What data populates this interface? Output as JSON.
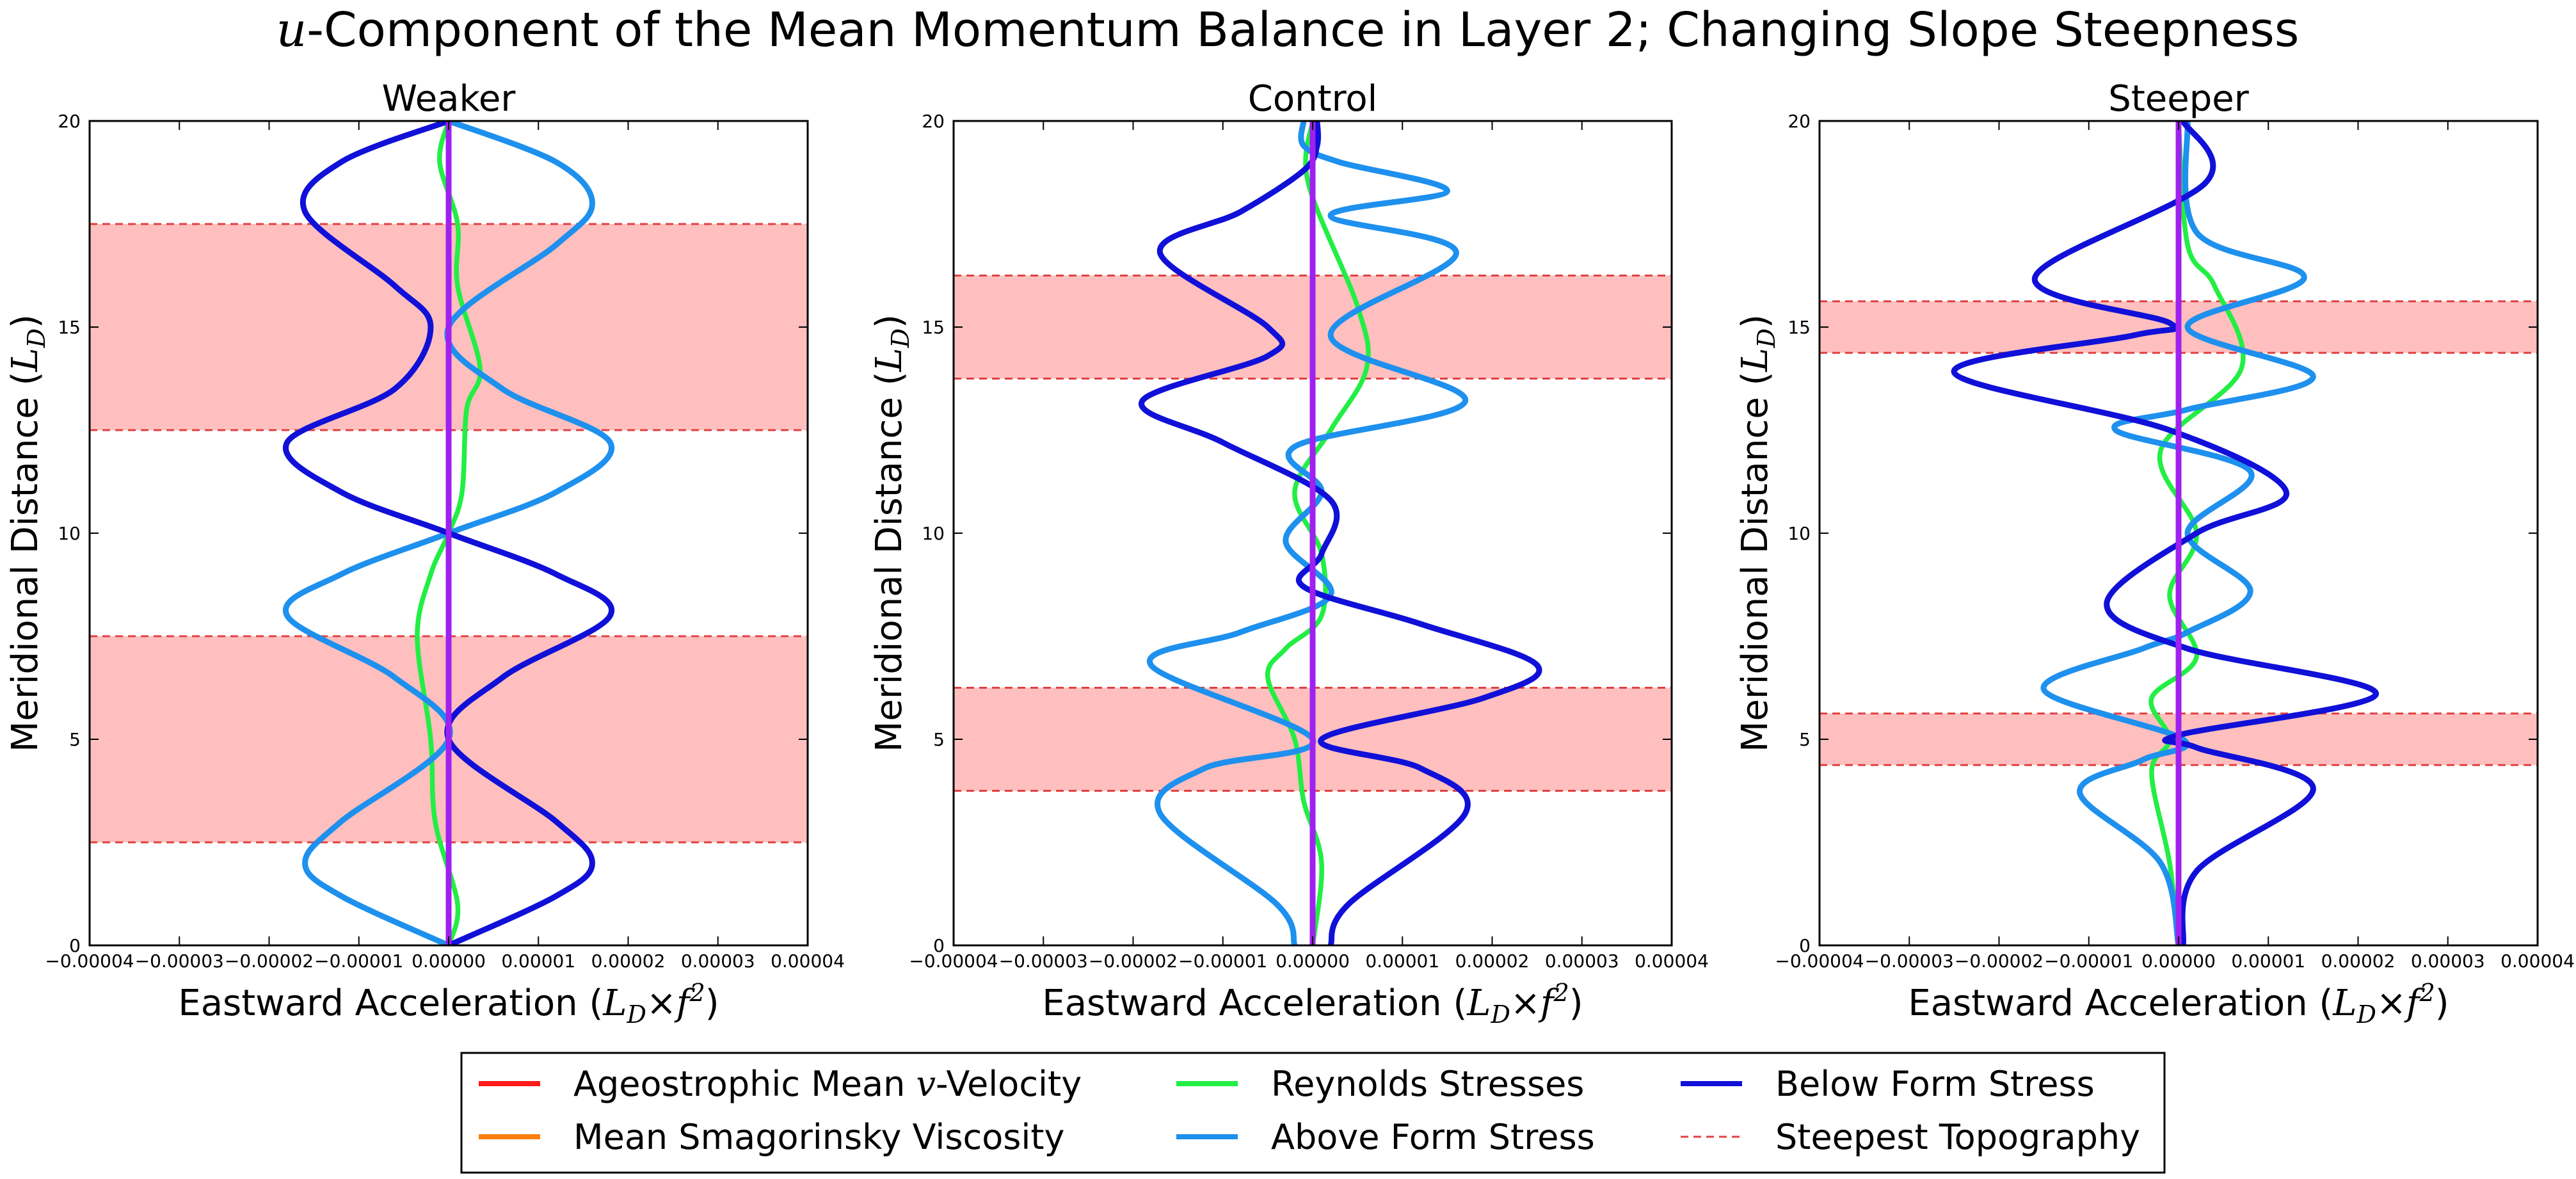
{
  "figure": {
    "title_pre": "u",
    "title_rest": "-Component of the Mean Momentum Balance in Layer 2; Changing Slope Steepness"
  },
  "axes": {
    "xlabel_text": "Eastward Acceleration (",
    "xlabel_math": "L",
    "xlabel_sub": "D",
    "xlabel_times": "×",
    "xlabel_f": "f",
    "xlabel_sup": "2",
    "xlabel_close": ")",
    "ylabel_text": "Meridional Distance (",
    "ylabel_math": "L",
    "ylabel_sub": "D",
    "ylabel_close": ")",
    "xticks": [
      "−0.00004",
      "−0.00003",
      "−0.00002",
      "−0.00001",
      "0.00000",
      "0.00001",
      "0.00002",
      "0.00003",
      "0.00004"
    ],
    "yticks": [
      "0",
      "5",
      "10",
      "15",
      "20"
    ]
  },
  "colors": {
    "ageo": "#ff1a1a",
    "smag": "#ff7f0e",
    "reynolds": "#22ee44",
    "above": "#1e90ee",
    "below": "#1010d8",
    "topo_band": "#ffbfbf",
    "topo_line": "#e04040",
    "sum": "#a020f0"
  },
  "legend": {
    "items": [
      {
        "label": "Ageostrophic Mean ",
        "math": "v",
        "tail": "-Velocity",
        "key": "ageo",
        "style": "solid"
      },
      {
        "label": "Mean Smagorinsky Viscosity",
        "math": "",
        "tail": "",
        "key": "smag",
        "style": "solid"
      },
      {
        "label": "Reynolds Stresses",
        "math": "",
        "tail": "",
        "key": "reynolds",
        "style": "solid"
      },
      {
        "label": "Above Form Stress",
        "math": "",
        "tail": "",
        "key": "above",
        "style": "solid"
      },
      {
        "label": "Below Form Stress",
        "math": "",
        "tail": "",
        "key": "below",
        "style": "solid"
      },
      {
        "label": "Steepest Topography",
        "math": "",
        "tail": "",
        "key": "topo_line",
        "style": "dashed"
      }
    ]
  },
  "chart_data": [
    {
      "type": "line",
      "title": "Weaker",
      "xlim": [
        -4e-05,
        4e-05
      ],
      "ylim": [
        0,
        20
      ],
      "shaded_bands": [
        [
          2.5,
          7.5
        ],
        [
          12.5,
          17.5
        ]
      ],
      "series": [
        {
          "name": "Above Form Stress",
          "x": [
            0,
            -1.2e-05,
            -1.6e-05,
            -1.2e-05,
            0,
            -6e-06,
            -1.8e-05,
            -1.2e-05,
            0,
            1.2e-05,
            1.8e-05,
            6e-06,
            0,
            1.2e-05,
            1.6e-05,
            1.2e-05,
            0
          ],
          "y": [
            0,
            1.2,
            2,
            3,
            5,
            6.5,
            8,
            9,
            10,
            11,
            12.2,
            13.5,
            15,
            17,
            18,
            19,
            20
          ]
        },
        {
          "name": "Below Form Stress",
          "x": [
            0,
            1.2e-05,
            1.6e-05,
            1.2e-05,
            0,
            6e-06,
            1.8e-05,
            1.2e-05,
            0,
            -1.2e-05,
            -1.8e-05,
            -6e-06,
            -2e-06,
            -6e-06,
            -1.6e-05,
            -1.2e-05,
            0
          ],
          "y": [
            0,
            1.2,
            2,
            3,
            5,
            6.5,
            8,
            9,
            10,
            11,
            12.2,
            13.5,
            15,
            16,
            17.8,
            19,
            20
          ]
        },
        {
          "name": "Reynolds Stresses",
          "x": [
            0,
            1e-06,
            -1.5e-06,
            -2e-06,
            -3.5e-06,
            -2e-06,
            0,
            1.5e-06,
            2e-06,
            3.5e-06,
            1e-06,
            1e-06,
            -1e-06,
            0
          ],
          "y": [
            0,
            1,
            3,
            5,
            7.5,
            9,
            10,
            11,
            13,
            14,
            16,
            17.5,
            19,
            20
          ]
        },
        {
          "name": "Ageostrophic Mean v-Velocity",
          "x": [
            0,
            0
          ],
          "y": [
            0,
            20
          ]
        },
        {
          "name": "Mean Smagorinsky Viscosity",
          "x": [
            0,
            0
          ],
          "y": [
            0,
            20
          ]
        },
        {
          "name": "Sum",
          "x": [
            0,
            0
          ],
          "y": [
            0,
            20
          ]
        }
      ]
    },
    {
      "type": "line",
      "title": "Control",
      "xlim": [
        -4e-05,
        4e-05
      ],
      "ylim": [
        0,
        20
      ],
      "shaded_bands": [
        [
          3.75,
          6.25
        ],
        [
          13.75,
          16.25
        ]
      ],
      "series": [
        {
          "name": "Above Form Stress",
          "x": [
            -2e-06,
            -4e-06,
            -1.7e-05,
            -1.2e-05,
            0,
            -1.8e-05,
            -8e-06,
            2e-06,
            -3e-06,
            1e-06,
            -2e-06,
            1.7e-05,
            2e-06,
            1.6e-05,
            2e-06,
            1.5e-05,
            3e-06,
            -1e-06,
            -1e-06
          ],
          "y": [
            0,
            1,
            3.2,
            4.3,
            5,
            6.8,
            7.6,
            8.5,
            9.8,
            11,
            12.1,
            13.2,
            14.8,
            16.8,
            17.7,
            18.3,
            19,
            19.4,
            20
          ]
        },
        {
          "name": "Below Form Stress",
          "x": [
            2e-06,
            4e-06,
            1.7e-05,
            1.2e-05,
            1e-06,
            1.9e-05,
            2.5e-05,
            1.2e-05,
            -1e-06,
            1e-06,
            2e-06,
            -1e-05,
            -1.9e-05,
            -5e-06,
            -5e-06,
            -1.7e-05,
            -8e-06,
            -1e-06,
            5e-07,
            5e-07
          ],
          "y": [
            0,
            1,
            3.2,
            4.3,
            5,
            6,
            6.8,
            7.8,
            8.7,
            9.5,
            10.8,
            12.2,
            13.2,
            14.3,
            15,
            16.8,
            17.8,
            18.8,
            19.4,
            20
          ]
        },
        {
          "name": "Reynolds Stresses",
          "x": [
            0,
            1e-06,
            -1e-06,
            -2e-06,
            -5e-06,
            -3e-06,
            1e-06,
            1e-06,
            -2e-06,
            2e-06,
            6e-06,
            5e-06,
            -5e-07,
            0
          ],
          "y": [
            0,
            2,
            3.5,
            5,
            6.5,
            7.2,
            8,
            9.5,
            11,
            12.5,
            14,
            15.5,
            18.5,
            20
          ]
        },
        {
          "name": "Ageostrophic Mean v-Velocity",
          "x": [
            0,
            0
          ],
          "y": [
            0,
            20
          ]
        },
        {
          "name": "Mean Smagorinsky Viscosity",
          "x": [
            0,
            0
          ],
          "y": [
            0,
            20
          ]
        },
        {
          "name": "Sum",
          "x": [
            0,
            0
          ],
          "y": [
            0,
            20
          ]
        }
      ]
    },
    {
      "type": "line",
      "title": "Steeper",
      "xlim": [
        -4e-05,
        4e-05
      ],
      "ylim": [
        0,
        20
      ],
      "shaded_bands": [
        [
          4.375,
          5.625
        ],
        [
          14.375,
          15.625
        ]
      ],
      "series": [
        {
          "name": "Above Form Stress",
          "x": [
            0,
            -2e-06,
            -1.1e-05,
            -4e-06,
            5e-07,
            -1.5e-05,
            -4e-06,
            1e-06,
            8e-06,
            1e-06,
            8e-06,
            -7e-06,
            1e-06,
            1.5e-05,
            1e-06,
            1.4e-05,
            2e-06,
            1e-06
          ],
          "y": [
            0,
            2,
            3.7,
            4.5,
            5,
            6.2,
            7.2,
            7.6,
            8.6,
            10,
            11.5,
            12.5,
            13,
            13.8,
            15,
            16.2,
            17.3,
            20
          ]
        },
        {
          "name": "Below Form Stress",
          "x": [
            5e-07,
            2e-06,
            1.5e-05,
            2e-06,
            0,
            2.2e-05,
            1e-06,
            -8e-06,
            2e-06,
            1.2e-05,
            -1e-06,
            -2.5e-05,
            -5e-06,
            -1e-06,
            -1.6e-05,
            3e-06,
            5e-07
          ],
          "y": [
            0,
            1.8,
            3.8,
            4.8,
            5.1,
            6.1,
            7.2,
            8.3,
            10,
            11,
            12.5,
            13.9,
            14.8,
            15.1,
            16.2,
            18.5,
            20
          ]
        },
        {
          "name": "Reynolds Stresses",
          "x": [
            0,
            -1e-06,
            -3e-06,
            -1e-06,
            -3e-06,
            2e-06,
            -1e-06,
            2e-06,
            -2e-06,
            7e-06,
            4e-06,
            1e-06,
            0
          ],
          "y": [
            0,
            2,
            4.2,
            5,
            6,
            7,
            8.5,
            10,
            12,
            14,
            16,
            17,
            20
          ]
        },
        {
          "name": "Ageostrophic Mean v-Velocity",
          "x": [
            0,
            0
          ],
          "y": [
            0,
            20
          ]
        },
        {
          "name": "Mean Smagorinsky Viscosity",
          "x": [
            0,
            0
          ],
          "y": [
            0,
            20
          ]
        },
        {
          "name": "Sum",
          "x": [
            0,
            0
          ],
          "y": [
            0,
            20
          ]
        }
      ]
    }
  ]
}
